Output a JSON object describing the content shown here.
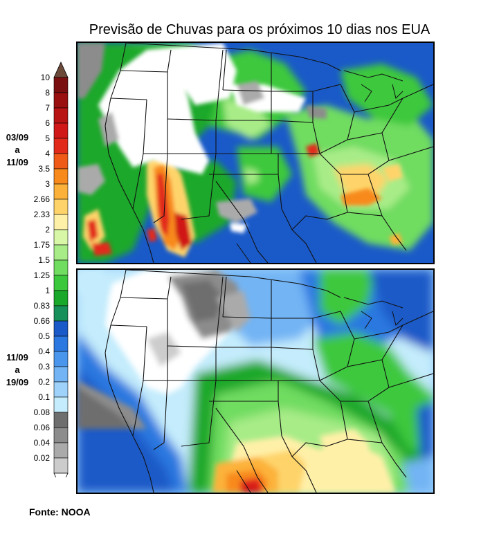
{
  "title": "Previsão de Chuvas para os próximos 10 dias nos EUA",
  "source": "Fonte: NOOA",
  "periods": [
    {
      "line1": "03/09",
      "line2": "a",
      "line3": "11/09"
    },
    {
      "line1": "11/09",
      "line2": "a",
      "line3": "19/09"
    }
  ],
  "legend": {
    "labels": [
      "10",
      "8",
      "7",
      "6",
      "5",
      "4",
      "3.5",
      "3",
      "2.66",
      "2.33",
      "2",
      "1.75",
      "1.5",
      "1.25",
      "1",
      "0.83",
      "0.66",
      "0.5",
      "0.4",
      "0.3",
      "0.2",
      "0.1",
      "0.08",
      "0.06",
      "0.04",
      "0.02"
    ],
    "colors": [
      "#7a0f0f",
      "#9a1010",
      "#b81414",
      "#d01818",
      "#e22a1a",
      "#f05a18",
      "#f88a1c",
      "#fcb23a",
      "#fed46a",
      "#fff0a8",
      "#d8f8a8",
      "#a8ec88",
      "#70dc60",
      "#3cc83c",
      "#1aa82a",
      "#18905a",
      "#1a5ac8",
      "#2a78e0",
      "#4a96ec",
      "#72b4f4",
      "#9ed2fa",
      "#c4ecfc",
      "#6e6e6e",
      "#8c8c8c",
      "#aaaaaa",
      "#cccccc"
    ],
    "top_arrow_color": "#6b4a3a",
    "bottom_arrow_color": "#ffffff"
  }
}
